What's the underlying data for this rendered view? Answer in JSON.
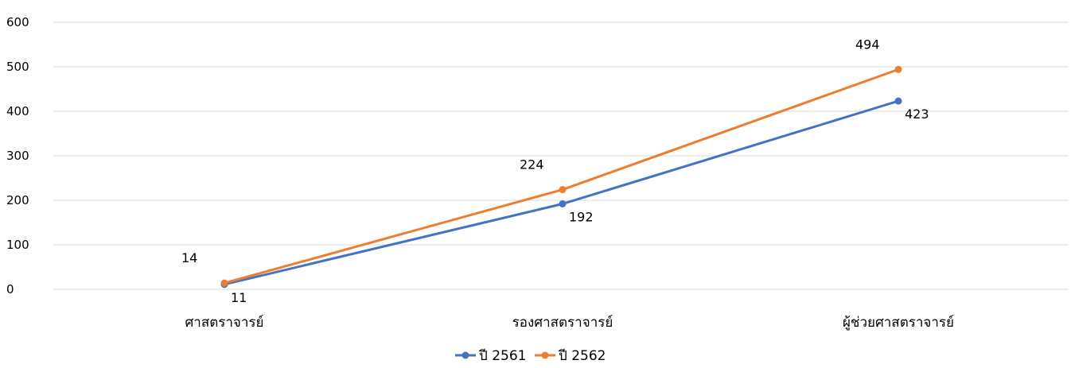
{
  "chart_data": {
    "type": "line",
    "categories": [
      "ศาสตราจารย์",
      "รองศาสตราจารย์",
      "ผู้ช่วยศาสตราจารย์"
    ],
    "series": [
      {
        "name": "ปี 2561",
        "values": [
          11,
          192,
          423
        ],
        "color": "#4472c4",
        "label_position": "below"
      },
      {
        "name": "ปี 2562",
        "values": [
          14,
          224,
          494
        ],
        "color": "#ed7d31",
        "label_position": "above"
      }
    ],
    "ylim": [
      0,
      600
    ],
    "yticks": [
      0,
      100,
      200,
      300,
      400,
      500,
      600
    ],
    "grid": true,
    "legend": "bottom-center"
  }
}
